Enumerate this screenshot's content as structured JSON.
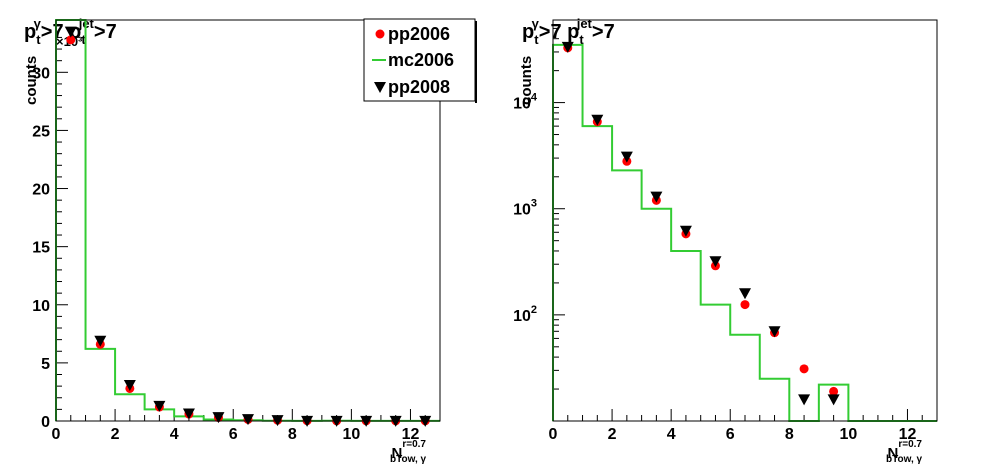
{
  "chart_data": [
    {
      "type": "scatter",
      "title": {
        "base": "p",
        "sub": "t",
        "sup": "γ",
        "mid": ">7 p",
        "sub2": "t",
        "sup2": "jet",
        "end": ">7"
      },
      "ylabel": "counts",
      "xlabel": {
        "base": "N",
        "sup": "r=0.7",
        "sub": "bTow, γ"
      },
      "exponent_label": "×10³",
      "xlim": [
        0,
        13
      ],
      "ylim": [
        0,
        34.5
      ],
      "yscale": "linear",
      "x_ticks": [
        "0",
        "2",
        "4",
        "6",
        "8",
        "10",
        "12"
      ],
      "y_ticks": [
        "0",
        "5",
        "10",
        "15",
        "20",
        "25",
        "30"
      ],
      "legend_position": "top-right",
      "series": [
        {
          "name": "pp2006",
          "marker": "circle",
          "color": "#ff0000",
          "x": [
            0.5,
            1.5,
            2.5,
            3.5,
            4.5,
            5.5,
            6.5,
            7.5,
            8.5,
            9.5,
            10.5,
            11.5,
            12.5
          ],
          "y": [
            32.8,
            6.6,
            2.8,
            1.2,
            0.6,
            0.3,
            0.13,
            0.07,
            0.03,
            0.02,
            0.02,
            0.02,
            0.02
          ]
        },
        {
          "name": "mc2006",
          "marker": "line",
          "color": "#33cc33",
          "edges": [
            0,
            1,
            2,
            3,
            4,
            5,
            6,
            7,
            8,
            9,
            10,
            11,
            12,
            13
          ],
          "y": [
            34.5,
            6.2,
            2.3,
            1.0,
            0.4,
            0.13,
            0.065,
            0.025,
            0.01,
            0.022,
            0.01,
            0.01,
            0.01
          ]
        },
        {
          "name": "pp2008",
          "marker": "triangle-down",
          "color": "#000000",
          "x": [
            0.5,
            1.5,
            2.5,
            3.5,
            4.5,
            5.5,
            6.5,
            7.5,
            8.5,
            9.5,
            10.5,
            11.5,
            12.5
          ],
          "y": [
            33.5,
            6.9,
            3.1,
            1.3,
            0.65,
            0.33,
            0.16,
            0.07,
            0.016,
            0.016,
            0.016,
            0.016,
            0.016
          ]
        }
      ]
    },
    {
      "type": "scatter",
      "title": {
        "base": "p",
        "sub": "t",
        "sup": "γ",
        "mid": ">7 p",
        "sub2": "t",
        "sup2": "jet",
        "end": ">7"
      },
      "ylabel": "counts",
      "xlabel": {
        "base": "N",
        "sup": "r=0.7",
        "sub": "bTow, γ"
      },
      "xlim": [
        0,
        13
      ],
      "ylim": [
        10,
        60000
      ],
      "yscale": "log",
      "x_ticks": [
        "0",
        "2",
        "4",
        "6",
        "8",
        "10",
        "12"
      ],
      "y_ticks": [
        {
          "base": "10",
          "exp": "2",
          "value": 100
        },
        {
          "base": "10",
          "exp": "3",
          "value": 1000
        },
        {
          "base": "10",
          "exp": "4",
          "value": 10000
        }
      ],
      "series": [
        {
          "name": "pp2006",
          "marker": "circle",
          "color": "#ff0000",
          "x": [
            0.5,
            1.5,
            2.5,
            3.5,
            4.5,
            5.5,
            6.5,
            7.5,
            8.5,
            9.5
          ],
          "y": [
            32800,
            6600,
            2800,
            1200,
            580,
            290,
            125,
            68,
            31,
            19
          ]
        },
        {
          "name": "mc2006",
          "marker": "line",
          "color": "#33cc33",
          "edges": [
            0,
            1,
            2,
            3,
            4,
            5,
            6,
            7,
            8,
            9,
            10,
            11,
            12,
            13
          ],
          "y": [
            35000,
            6000,
            2300,
            1000,
            400,
            125,
            65,
            25,
            10,
            22,
            10,
            10,
            10
          ]
        },
        {
          "name": "pp2008",
          "marker": "triangle-down",
          "color": "#000000",
          "x": [
            0.5,
            1.5,
            2.5,
            3.5,
            4.5,
            5.5,
            6.5,
            7.5,
            8.5,
            9.5
          ],
          "y": [
            33500,
            6900,
            3100,
            1300,
            620,
            320,
            160,
            70,
            16,
            16
          ]
        }
      ]
    }
  ]
}
